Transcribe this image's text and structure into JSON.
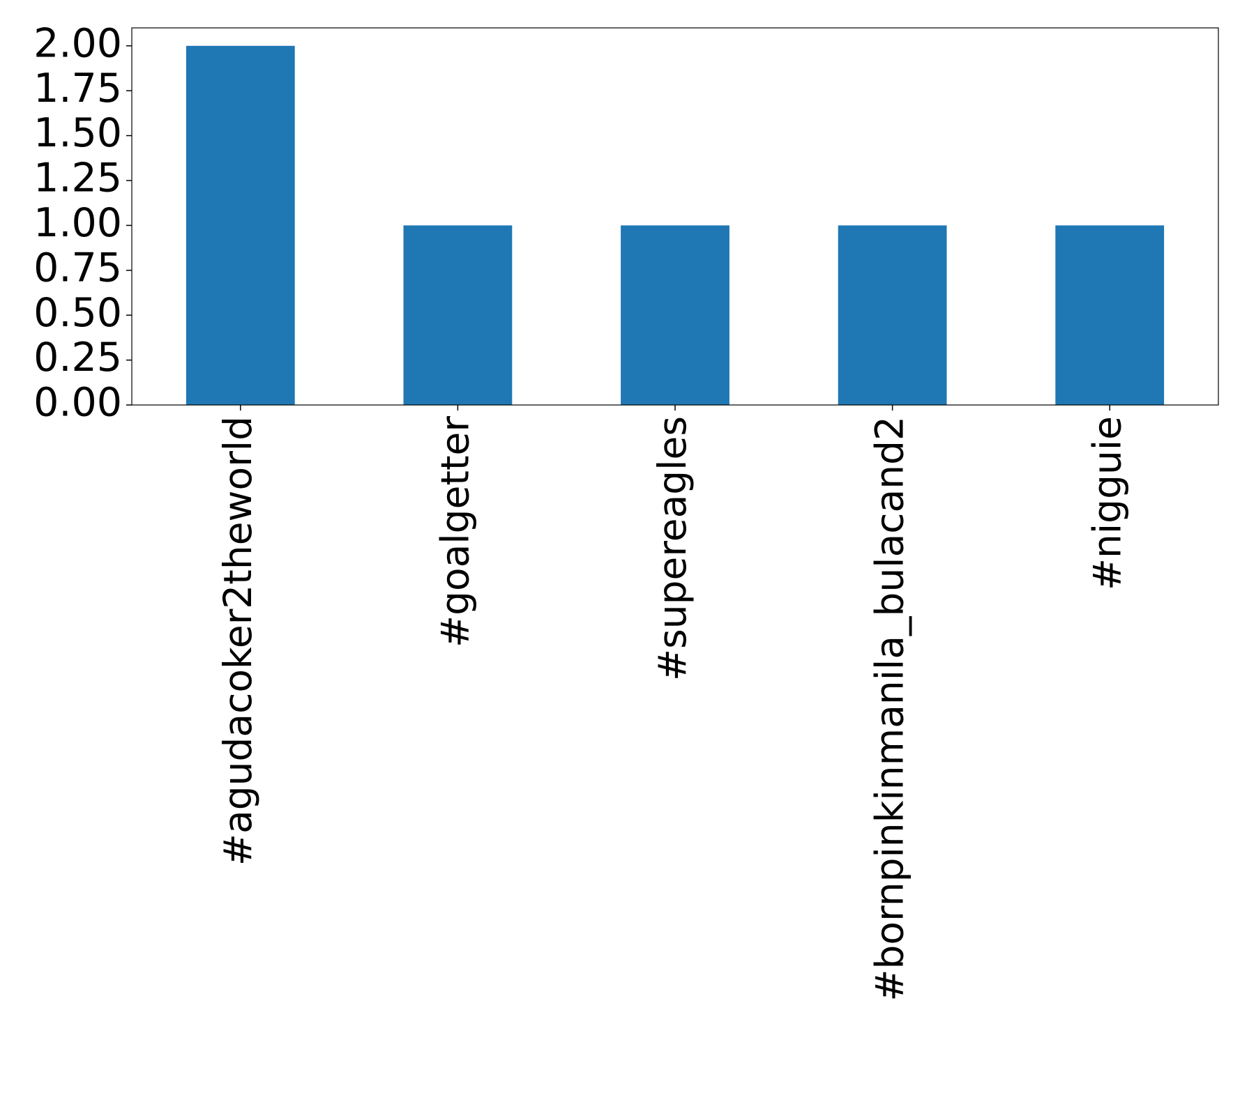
{
  "chart_data": {
    "type": "bar",
    "categories": [
      "#agudacoker2theworld",
      "#goalgetter",
      "#supereagles",
      "#bornpinkinmanila_bulacand2",
      "#nigguie"
    ],
    "values": [
      2,
      1,
      1,
      1,
      1
    ],
    "color": "#1f77b4",
    "ylim": [
      0,
      2.1
    ],
    "yticks": [
      {
        "value": 0,
        "label": "0.00"
      },
      {
        "value": 0.25,
        "label": "0.25"
      },
      {
        "value": 0.5,
        "label": "0.50"
      },
      {
        "value": 0.75,
        "label": "0.75"
      },
      {
        "value": 1,
        "label": "1.00"
      },
      {
        "value": 1.25,
        "label": "1.25"
      },
      {
        "value": 1.5,
        "label": "1.50"
      },
      {
        "value": 1.75,
        "label": "1.75"
      },
      {
        "value": 2,
        "label": "2.00"
      }
    ],
    "grid": false
  }
}
